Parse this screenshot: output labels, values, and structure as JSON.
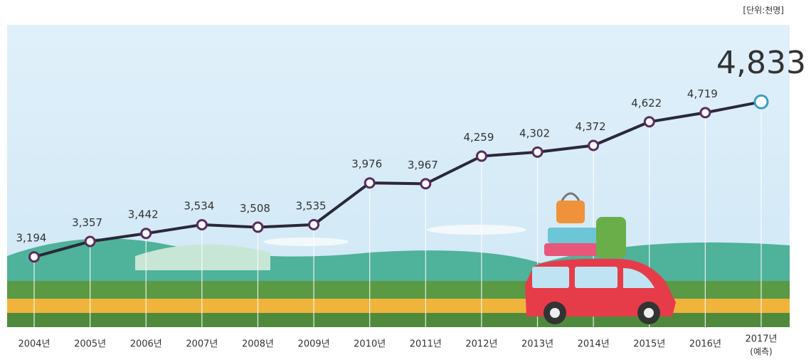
{
  "chart_data": {
    "type": "line",
    "unit_label": "[단위:천명]",
    "categories": [
      "2004년",
      "2005년",
      "2006년",
      "2007년",
      "2008년",
      "2009년",
      "2010년",
      "2011년",
      "2012년",
      "2013년",
      "2014년",
      "2015년",
      "2016년",
      "2017년"
    ],
    "forecast_label": "(예측)",
    "values": [
      3194,
      3357,
      3442,
      3534,
      3508,
      3535,
      3976,
      3967,
      4259,
      4302,
      4372,
      4622,
      4719,
      4833
    ],
    "value_labels": [
      "3,194",
      "3,357",
      "3,442",
      "3,534",
      "3,508",
      "3,535",
      "3,976",
      "3,967",
      "4,259",
      "4,302",
      "4,372",
      "4,622",
      "4,719",
      "4,833"
    ],
    "color": "#2b2838",
    "marker_color": "#5b2d5e",
    "highlight_color": "#3a9ec8",
    "ylim": [
      3000,
      5000
    ]
  }
}
